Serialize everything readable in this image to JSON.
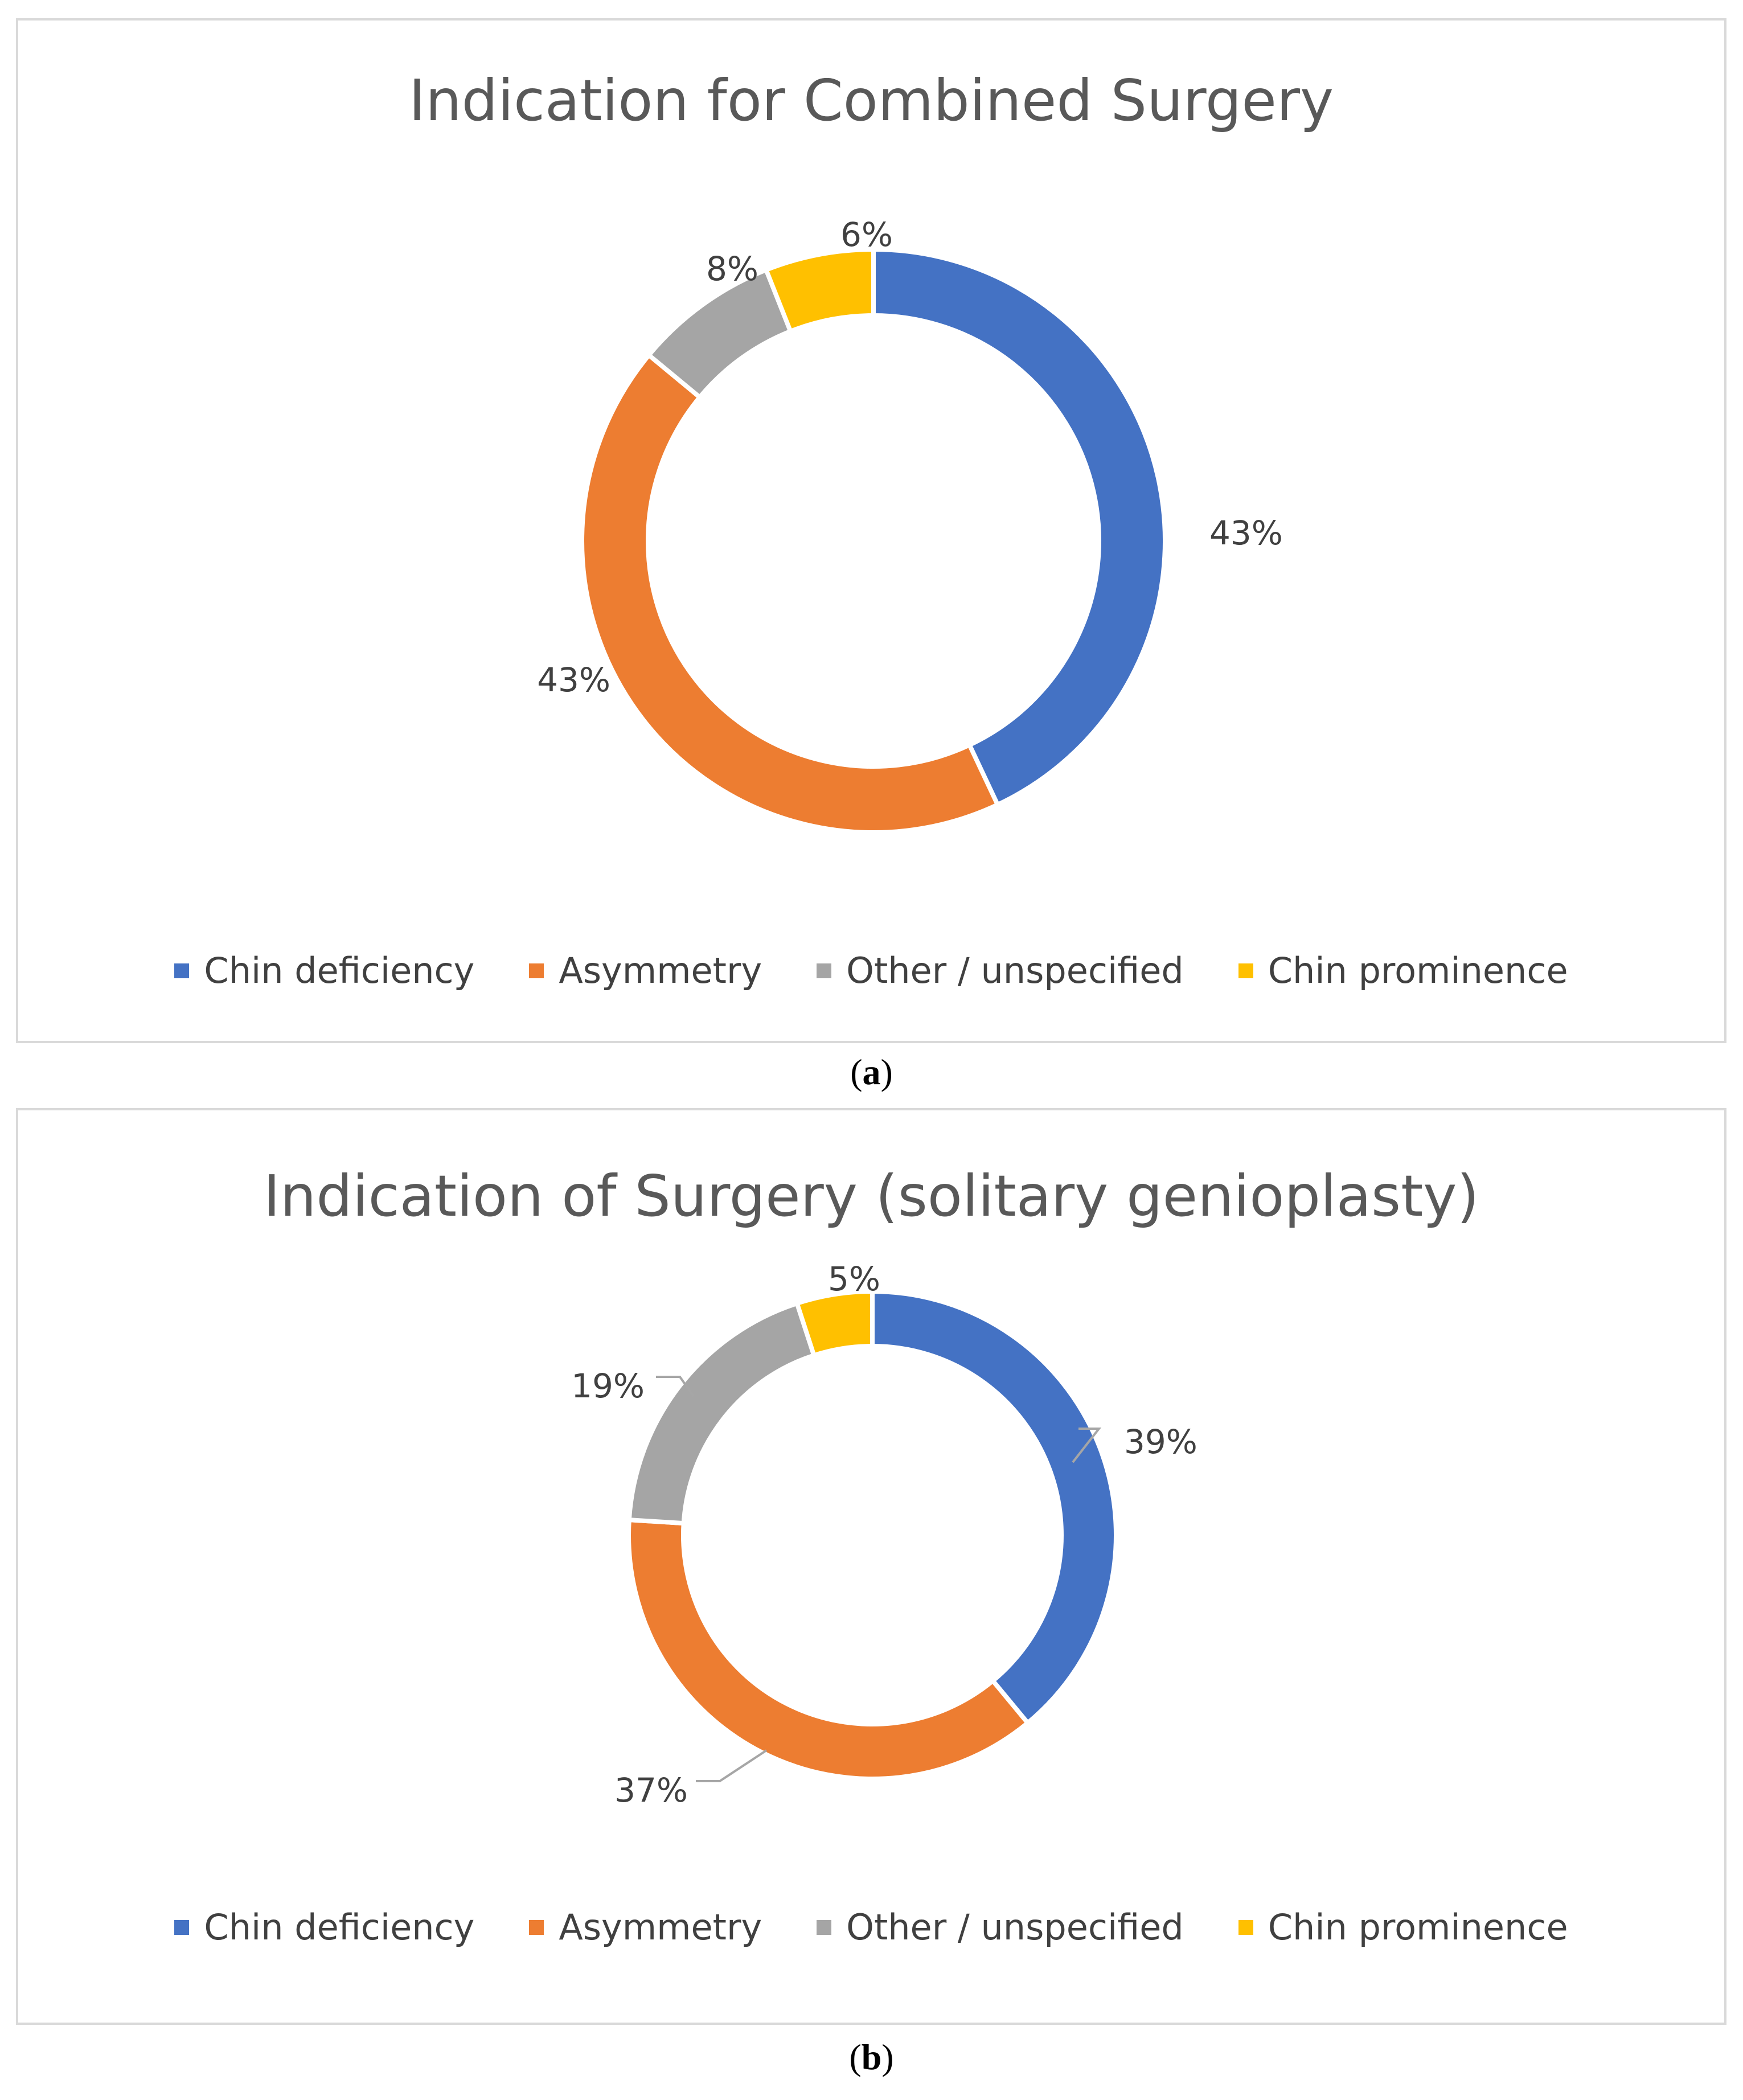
{
  "chart_data": [
    {
      "type": "pie",
      "variant": "donut",
      "title": "Indication for Combined Surgery",
      "categories": [
        "Chin deficiency",
        "Asymmetry",
        "Other / unspecified",
        "Chin prominence"
      ],
      "values": [
        43,
        43,
        8,
        6
      ],
      "data_labels": [
        "43%",
        "43%",
        "8%",
        "6%"
      ],
      "colors": [
        "#4472C4",
        "#ED7D31",
        "#A5A5A5",
        "#FFC000"
      ],
      "legend_position": "bottom",
      "caption": "a"
    },
    {
      "type": "pie",
      "variant": "donut",
      "title": "Indication of Surgery (solitary genioplasty)",
      "categories": [
        "Chin deficiency",
        "Asymmetry",
        "Other / unspecified",
        "Chin prominence"
      ],
      "values": [
        39,
        37,
        19,
        5
      ],
      "data_labels": [
        "39%",
        "37%",
        "19%",
        "5%"
      ],
      "colors": [
        "#4472C4",
        "#ED7D31",
        "#A5A5A5",
        "#FFC000"
      ],
      "legend_position": "bottom",
      "caption": "b"
    }
  ]
}
